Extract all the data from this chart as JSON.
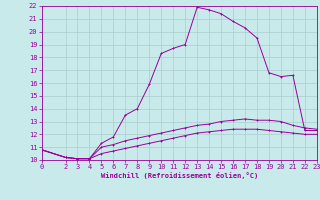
{
  "xlabel": "Windchill (Refroidissement éolien,°C)",
  "bg_color": "#c8eaea",
  "grid_color": "#aacccc",
  "line_color": "#990099",
  "xlim": [
    0,
    23
  ],
  "ylim": [
    10,
    22
  ],
  "xticks": [
    0,
    2,
    3,
    4,
    5,
    6,
    7,
    8,
    9,
    10,
    11,
    12,
    13,
    14,
    15,
    16,
    17,
    18,
    19,
    20,
    21,
    22,
    23
  ],
  "yticks": [
    10,
    11,
    12,
    13,
    14,
    15,
    16,
    17,
    18,
    19,
    20,
    21,
    22
  ],
  "line1_x": [
    0,
    2,
    3,
    4,
    5,
    6,
    7,
    8,
    9,
    10,
    11,
    12,
    13,
    14,
    15,
    16,
    17,
    18,
    19,
    20,
    21,
    22,
    23
  ],
  "line1_y": [
    10.8,
    10.2,
    10.1,
    10.1,
    11.3,
    11.8,
    13.5,
    14.0,
    15.9,
    18.3,
    18.7,
    19.0,
    21.9,
    21.7,
    21.4,
    20.8,
    20.3,
    19.5,
    16.8,
    16.5,
    16.6,
    12.3,
    12.3
  ],
  "line2_x": [
    0,
    2,
    3,
    4,
    5,
    6,
    7,
    8,
    9,
    10,
    11,
    12,
    13,
    14,
    15,
    16,
    17,
    18,
    19,
    20,
    21,
    22,
    23
  ],
  "line2_y": [
    10.8,
    10.2,
    10.1,
    10.1,
    11.0,
    11.2,
    11.5,
    11.7,
    11.9,
    12.1,
    12.3,
    12.5,
    12.7,
    12.8,
    13.0,
    13.1,
    13.2,
    13.1,
    13.1,
    13.0,
    12.7,
    12.5,
    12.4
  ],
  "line3_x": [
    0,
    2,
    3,
    4,
    5,
    6,
    7,
    8,
    9,
    10,
    11,
    12,
    13,
    14,
    15,
    16,
    17,
    18,
    19,
    20,
    21,
    22,
    23
  ],
  "line3_y": [
    10.8,
    10.2,
    10.1,
    10.1,
    10.5,
    10.7,
    10.9,
    11.1,
    11.3,
    11.5,
    11.7,
    11.9,
    12.1,
    12.2,
    12.3,
    12.4,
    12.4,
    12.4,
    12.3,
    12.2,
    12.1,
    12.0,
    12.0
  ],
  "tick_fontsize": 5,
  "xlabel_fontsize": 5,
  "marker_size": 2,
  "line_width": 0.7
}
